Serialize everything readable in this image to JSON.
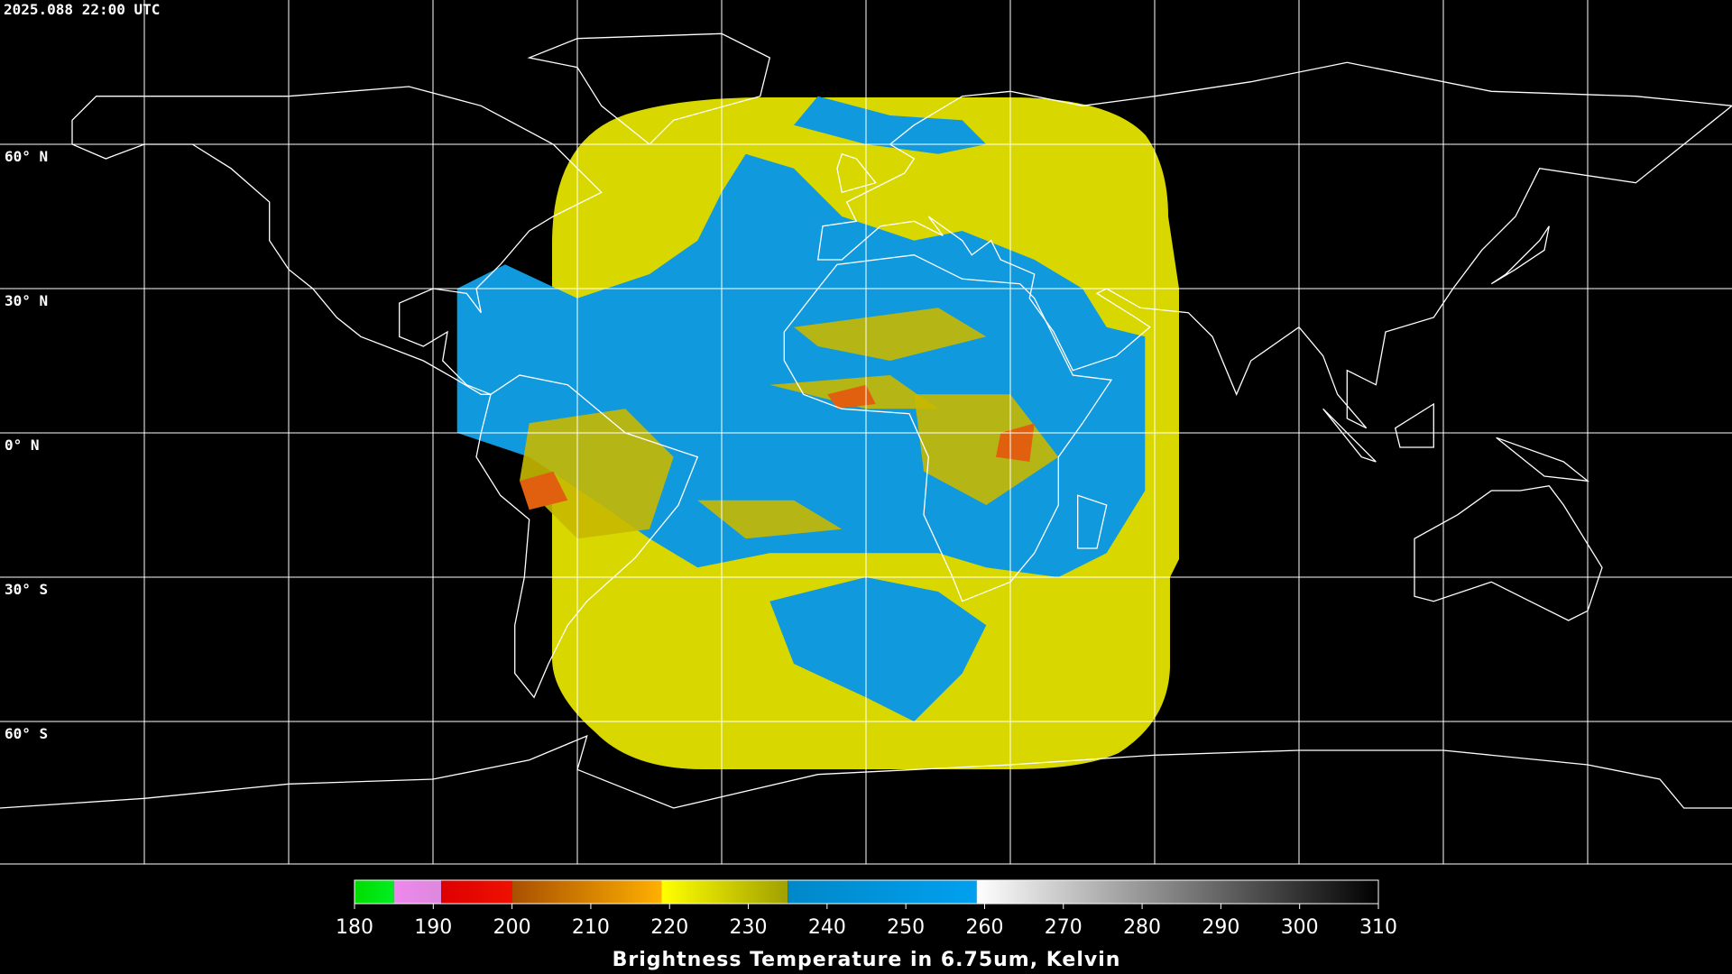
{
  "header": {
    "timestamp": "2025.088 22:00 UTC"
  },
  "map": {
    "latitude_lines": [
      {
        "value": 60,
        "label": "60° N"
      },
      {
        "value": 30,
        "label": "30° N"
      },
      {
        "value": 0,
        "label": "0° N"
      },
      {
        "value": -30,
        "label": "30° S"
      },
      {
        "value": -60,
        "label": "60° S"
      }
    ]
  },
  "colorbar": {
    "title": "Brightness Temperature in 6.75um, Kelvin",
    "min": 180,
    "max": 310,
    "ticks": [
      180,
      190,
      200,
      210,
      220,
      230,
      240,
      250,
      260,
      270,
      280,
      290,
      300,
      310
    ],
    "segments": [
      {
        "from": 180,
        "to": 185,
        "colors": [
          "#00dd00",
          "#00ee22"
        ]
      },
      {
        "from": 185,
        "to": 191,
        "colors": [
          "#ee88ee",
          "#dd88dd"
        ]
      },
      {
        "from": 191,
        "to": 200,
        "colors": [
          "#dd0000",
          "#ee1100"
        ]
      },
      {
        "from": 200,
        "to": 219,
        "colors": [
          "#a85000",
          "#ffb000"
        ]
      },
      {
        "from": 219,
        "to": 235,
        "colors": [
          "#ffff00",
          "#a0a000"
        ]
      },
      {
        "from": 235,
        "to": 259,
        "colors": [
          "#0088c8",
          "#00a0f0"
        ]
      },
      {
        "from": 259,
        "to": 310,
        "colors": [
          "#ffffff",
          "#000000"
        ]
      }
    ]
  }
}
